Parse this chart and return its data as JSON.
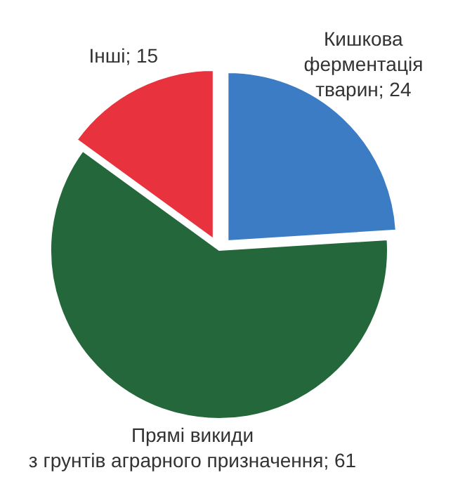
{
  "chart_data": {
    "type": "pie",
    "categories": [
      "Кишкова\nферментація\nтварин",
      "Прямі викиди\nз грунтів аграрного призначення",
      "Інші"
    ],
    "values": [
      24,
      61,
      15
    ],
    "value_labels": [
      "; 24",
      "; 61",
      "; 15"
    ],
    "colors": [
      "#3b7cc4",
      "#24673b",
      "#e8333f"
    ]
  }
}
